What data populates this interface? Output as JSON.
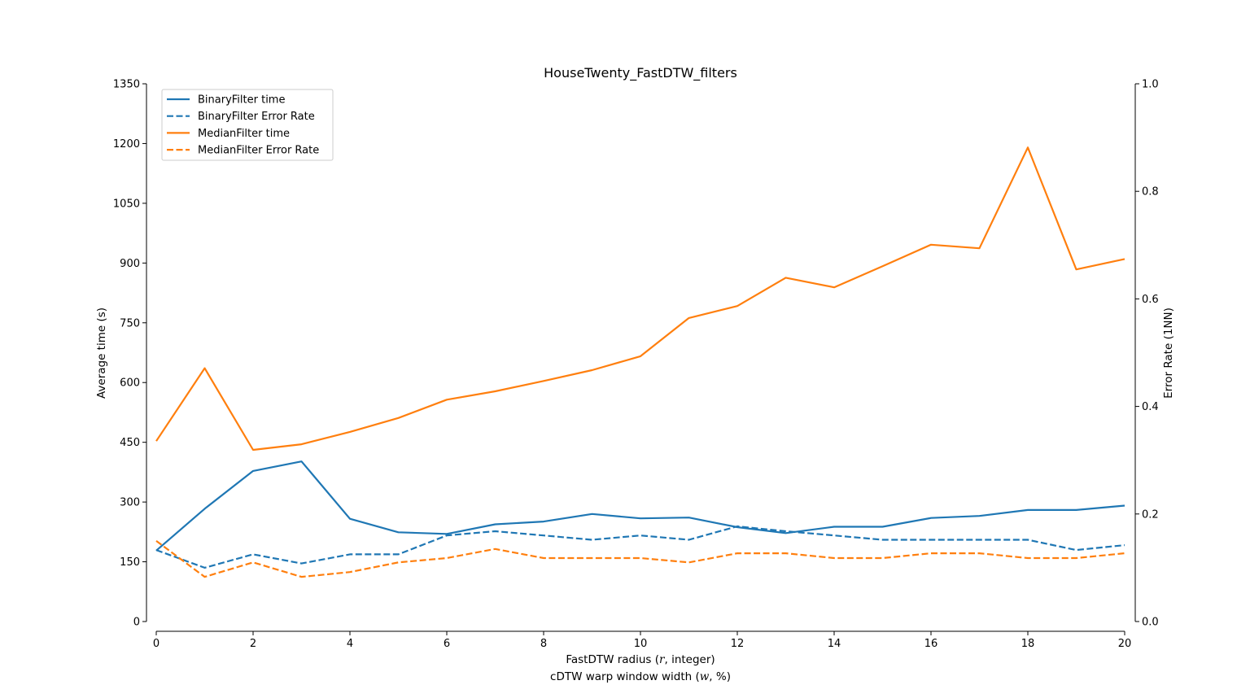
{
  "chart_data": {
    "type": "line",
    "title": "HouseTwenty_FastDTW_filters",
    "xlabel": "FastDTW radius ($r$, integer)",
    "xlabel_parts": [
      "FastDTW radius (",
      "r",
      ", integer)"
    ],
    "xlabel2_parts": [
      "cDTW warp window width (",
      "w",
      ", %)"
    ],
    "ylabel": "Average time (s)",
    "ylabel_right": "Error Rate (1NN)",
    "xlim": [
      0,
      20
    ],
    "ylim": [
      0,
      1350
    ],
    "ylim_right": [
      0.0,
      1.0
    ],
    "x_ticks": [
      "0",
      "2",
      "4",
      "6",
      "8",
      "10",
      "12",
      "14",
      "16",
      "18",
      "20"
    ],
    "y_ticks": [
      "0",
      "150",
      "300",
      "450",
      "600",
      "750",
      "900",
      "1050",
      "1200",
      "1350"
    ],
    "y_right_ticks": [
      "0.0",
      "0.2",
      "0.4",
      "0.6",
      "0.8",
      "1.0"
    ],
    "grid": false,
    "legend_position": "top-left",
    "x": [
      0,
      1,
      2,
      3,
      4,
      5,
      6,
      7,
      8,
      9,
      10,
      11,
      12,
      13,
      14,
      15,
      16,
      17,
      18,
      19,
      20
    ],
    "series": [
      {
        "name": "BinaryFilter time",
        "axis": "left",
        "style": "solid",
        "color": "#1f77b4",
        "values": [
          178,
          283,
          378,
          402,
          258,
          224,
          220,
          244,
          251,
          270,
          259,
          261,
          237,
          222,
          238,
          238,
          260,
          265,
          280,
          280,
          291
        ]
      },
      {
        "name": "BinaryFilter Error Rate",
        "axis": "right",
        "style": "dashed",
        "color": "#1f77b4",
        "values": [
          0.133,
          0.1,
          0.125,
          0.108,
          0.125,
          0.125,
          0.16,
          0.168,
          0.16,
          0.152,
          0.16,
          0.152,
          0.177,
          0.168,
          0.16,
          0.152,
          0.152,
          0.152,
          0.152,
          0.133,
          0.142
        ]
      },
      {
        "name": "MedianFilter time",
        "axis": "left",
        "style": "solid",
        "color": "#ff7f0e",
        "values": [
          453,
          636,
          431,
          445,
          476,
          511,
          557,
          578,
          604,
          631,
          666,
          762,
          792,
          863,
          839,
          892,
          946,
          937,
          1190,
          884,
          910
        ]
      },
      {
        "name": "MedianFilter Error Rate",
        "axis": "right",
        "style": "dashed",
        "color": "#ff7f0e",
        "values": [
          0.15,
          0.083,
          0.11,
          0.083,
          0.092,
          0.11,
          0.118,
          0.135,
          0.118,
          0.118,
          0.118,
          0.11,
          0.127,
          0.127,
          0.118,
          0.118,
          0.127,
          0.127,
          0.118,
          0.118,
          0.127
        ]
      }
    ]
  }
}
